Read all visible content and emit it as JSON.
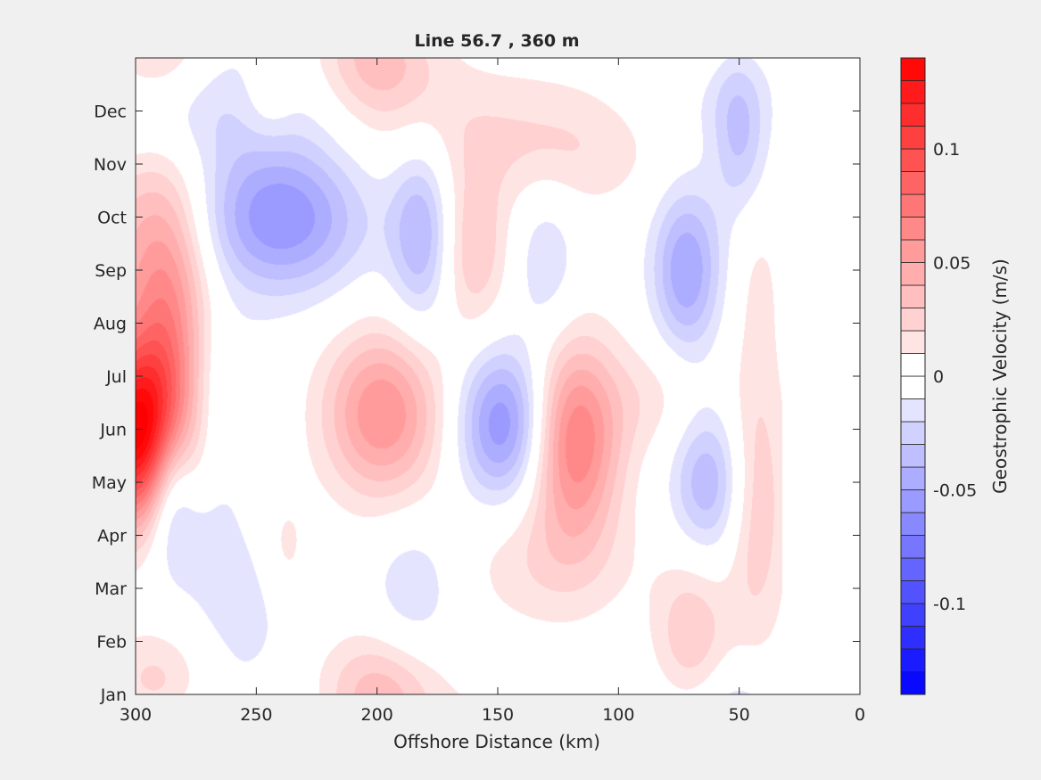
{
  "chart_data": {
    "type": "heatmap",
    "subtype": "filled-contour",
    "title": "Line 56.7 , 360 m",
    "xlabel": "Offshore Distance (km)",
    "ylabel": "",
    "x_reversed": true,
    "xlim": [
      0,
      300
    ],
    "x_ticks": [
      300,
      250,
      200,
      150,
      100,
      50,
      0
    ],
    "y_categories": [
      "Jan",
      "Feb",
      "Mar",
      "Apr",
      "May",
      "Jun",
      "Jul",
      "Aug",
      "Sep",
      "Oct",
      "Nov",
      "Dec"
    ],
    "data_x_extent_km": [
      33,
      300
    ],
    "colorbar": {
      "label": "Geostrophic Velocity (m/s)",
      "range": [
        -0.14,
        0.14
      ],
      "step": 0.01,
      "ticks": [
        0.1,
        0.05,
        0,
        -0.05,
        -0.1
      ],
      "colormap": "blue-white-red",
      "neg_color": "#0000ff",
      "zero_color": "#ffffff",
      "pos_color": "#ff0000"
    },
    "grid": false,
    "legend": "colorbar-right",
    "features": [
      {
        "x_km": 300,
        "month": 5.9,
        "value": 0.14,
        "sx_km": 15,
        "sy_mon": 1.2
      },
      {
        "x_km": 286,
        "month": 7.6,
        "value": 0.05,
        "sx_km": 11,
        "sy_mon": 2.0
      },
      {
        "x_km": 300,
        "month": 9.5,
        "value": 0.03,
        "sx_km": 20,
        "sy_mon": 1.5
      },
      {
        "x_km": 286,
        "month": 5.1,
        "value": -0.05,
        "sx_km": 7,
        "sy_mon": 1.0
      },
      {
        "x_km": 280,
        "month": 4.2,
        "value": -0.02,
        "sx_km": 14,
        "sy_mon": 1.0
      },
      {
        "x_km": 272,
        "month": 6.5,
        "value": -0.02,
        "sx_km": 15,
        "sy_mon": 1.2
      },
      {
        "x_km": 240,
        "month": 10.0,
        "value": -0.06,
        "sx_km": 24,
        "sy_mon": 1.0
      },
      {
        "x_km": 270,
        "month": 12.0,
        "value": -0.02,
        "sx_km": 45,
        "sy_mon": 0.8
      },
      {
        "x_km": 198,
        "month": 6.3,
        "value": 0.06,
        "sx_km": 17,
        "sy_mon": 1.1
      },
      {
        "x_km": 148,
        "month": 6.1,
        "value": -0.06,
        "sx_km": 13,
        "sy_mon": 1.0
      },
      {
        "x_km": 118,
        "month": 5.8,
        "value": 0.07,
        "sx_km": 13,
        "sy_mon": 1.3
      },
      {
        "x_km": 182,
        "month": 9.7,
        "value": -0.04,
        "sx_km": 9,
        "sy_mon": 1.2
      },
      {
        "x_km": 160,
        "month": 9.4,
        "value": 0.03,
        "sx_km": 10,
        "sy_mon": 1.1
      },
      {
        "x_km": 130,
        "month": 9.2,
        "value": -0.02,
        "sx_km": 9,
        "sy_mon": 1.0
      },
      {
        "x_km": 72,
        "month": 9.0,
        "value": -0.05,
        "sx_km": 10,
        "sy_mon": 1.1
      },
      {
        "x_km": 63,
        "month": 5.0,
        "value": -0.04,
        "sx_km": 11,
        "sy_mon": 1.0
      },
      {
        "x_km": 43,
        "month": 4.7,
        "value": 0.03,
        "sx_km": 9,
        "sy_mon": 2.0
      },
      {
        "x_km": 42,
        "month": 8.9,
        "value": 0.01,
        "sx_km": 7,
        "sy_mon": 1.1
      },
      {
        "x_km": 85,
        "month": 6.6,
        "value": 0.015,
        "sx_km": 15,
        "sy_mon": 0.8
      },
      {
        "x_km": 70,
        "month": 2.1,
        "value": 0.03,
        "sx_km": 11,
        "sy_mon": 1.1
      },
      {
        "x_km": 185,
        "month": 3.0,
        "value": -0.02,
        "sx_km": 12,
        "sy_mon": 0.9
      },
      {
        "x_km": 200,
        "month": 1.0,
        "value": 0.035,
        "sx_km": 17,
        "sy_mon": 0.8
      },
      {
        "x_km": 292,
        "month": 1.2,
        "value": 0.025,
        "sx_km": 15,
        "sy_mon": 0.7
      },
      {
        "x_km": 130,
        "month": 3.5,
        "value": 0.018,
        "sx_km": 25,
        "sy_mon": 0.9
      },
      {
        "x_km": 172,
        "month": 11.8,
        "value": 0.015,
        "sx_km": 45,
        "sy_mon": 0.9
      },
      {
        "x_km": 120,
        "month": 11.2,
        "value": 0.015,
        "sx_km": 28,
        "sy_mon": 0.8
      },
      {
        "x_km": 50,
        "month": 11.5,
        "value": -0.03,
        "sx_km": 8,
        "sy_mon": 1.0
      },
      {
        "x_km": 62,
        "month": 12.5,
        "value": -0.015,
        "sx_km": 20,
        "sy_mon": 0.8
      },
      {
        "x_km": 245,
        "month": 12.2,
        "value": 0.015,
        "sx_km": 8,
        "sy_mon": 0.6
      },
      {
        "x_km": 255,
        "month": 2.6,
        "value": -0.015,
        "sx_km": 15,
        "sy_mon": 1.0
      },
      {
        "x_km": 238,
        "month": 3.7,
        "value": 0.015,
        "sx_km": 7,
        "sy_mon": 0.8
      }
    ]
  }
}
